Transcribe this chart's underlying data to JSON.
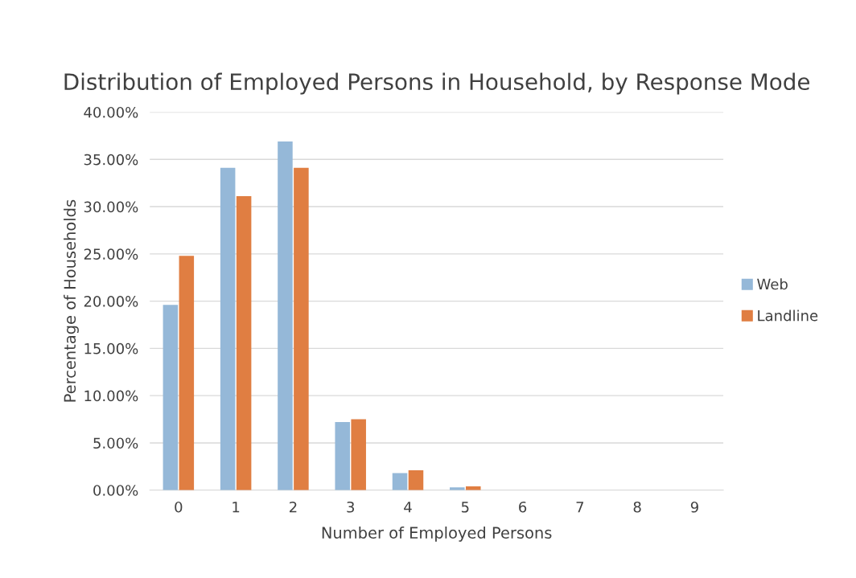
{
  "chart_data": {
    "type": "bar",
    "title": "Distribution of Employed Persons in Household, by Response Mode",
    "xlabel": "Number of Employed Persons",
    "ylabel": "Percentage of Households",
    "categories": [
      "0",
      "1",
      "2",
      "3",
      "4",
      "5",
      "6",
      "7",
      "8",
      "9"
    ],
    "series": [
      {
        "name": "Web",
        "color": "#95b8d8",
        "values": [
          19.6,
          34.1,
          36.9,
          7.2,
          1.8,
          0.3,
          0,
          0,
          0,
          0
        ]
      },
      {
        "name": "Landline",
        "color": "#e07e42",
        "values": [
          24.8,
          31.1,
          34.1,
          7.5,
          2.1,
          0.4,
          0,
          0,
          0,
          0
        ]
      }
    ],
    "ylim": [
      0,
      40
    ],
    "yticks": [
      {
        "value": 0,
        "label": "0.00%"
      },
      {
        "value": 5,
        "label": "5.00%"
      },
      {
        "value": 10,
        "label": "10.00%"
      },
      {
        "value": 15,
        "label": "15.00%"
      },
      {
        "value": 20,
        "label": "20.00%"
      },
      {
        "value": 25,
        "label": "25.00%"
      },
      {
        "value": 30,
        "label": "30.00%"
      },
      {
        "value": 35,
        "label": "35.00%"
      },
      {
        "value": 40,
        "label": "40.00%"
      }
    ],
    "grid": "y",
    "legend": "right"
  }
}
